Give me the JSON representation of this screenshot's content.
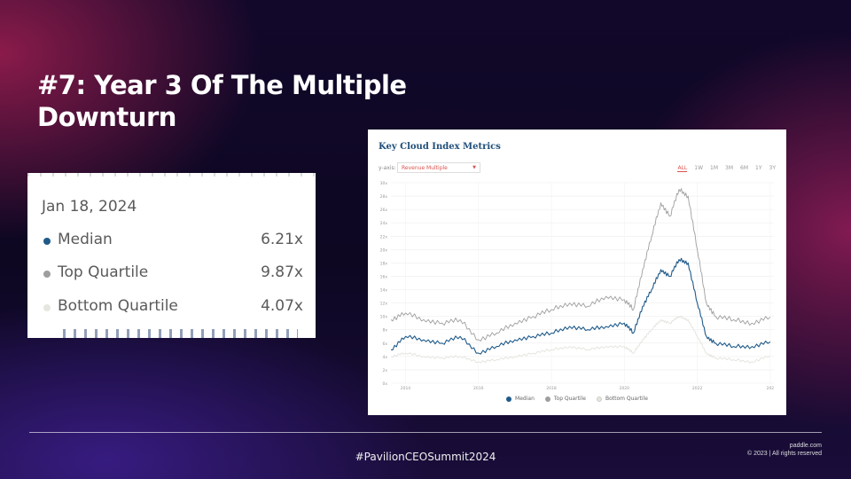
{
  "slide": {
    "title": "#7:  Year 3 Of The Multiple Downturn"
  },
  "tooltip": {
    "date": "Jan 18, 2024",
    "rows": [
      {
        "label": "Median",
        "value": "6.21x",
        "color": "#1f5a8a"
      },
      {
        "label": "Top Quartile",
        "value": "9.87x",
        "color": "#9e9e9e"
      },
      {
        "label": "Bottom Quartile",
        "value": "4.07x",
        "color": "#e6e6e0"
      }
    ]
  },
  "chart_panel": {
    "title": "Key Cloud Index Metrics",
    "yaxis_label": "y-axis:",
    "yaxis_selected": "Revenue Multiple",
    "ranges": [
      "ALL",
      "1W",
      "1M",
      "3M",
      "6M",
      "1Y",
      "3Y"
    ],
    "active_range": "ALL",
    "legend": [
      {
        "label": "Median",
        "color": "#1f5a8a"
      },
      {
        "label": "Top Quartile",
        "color": "#9e9e9e"
      },
      {
        "label": "Bottom Quartile",
        "color": "#e6e6e0"
      }
    ]
  },
  "chart_data": {
    "type": "line",
    "y_tick_labels": [
      "0x",
      "2x",
      "4x",
      "6x",
      "8x",
      "10x",
      "12x",
      "14x",
      "16x",
      "18x",
      "20x",
      "22x",
      "24x",
      "26x",
      "28x",
      "30x"
    ],
    "x_tick_labels": [
      "2014",
      "2016",
      "2018",
      "2020",
      "2022",
      "202"
    ],
    "ylim": [
      0,
      30
    ],
    "xlim": [
      2013.6,
      2024.1
    ],
    "grid": true,
    "legend_position": "bottom",
    "x": [
      2013.6,
      2014.0,
      2014.5,
      2015.0,
      2015.5,
      2016.0,
      2016.5,
      2017.0,
      2017.5,
      2018.0,
      2018.5,
      2019.0,
      2019.5,
      2020.0,
      2020.25,
      2020.5,
      2020.75,
      2021.0,
      2021.25,
      2021.5,
      2021.75,
      2022.0,
      2022.25,
      2022.5,
      2023.0,
      2023.5,
      2024.0
    ],
    "series": [
      {
        "name": "Top Quartile",
        "color": "#9e9e9e",
        "values": [
          9.5,
          10.5,
          9.5,
          9.0,
          9.5,
          6.5,
          7.5,
          9.0,
          10.0,
          11.0,
          12.0,
          11.5,
          13.0,
          12.5,
          11.0,
          17.0,
          22.0,
          27.0,
          25.0,
          29.0,
          28.0,
          20.0,
          12.0,
          10.0,
          9.5,
          9.0,
          9.9
        ]
      },
      {
        "name": "Median",
        "color": "#1f5a8a",
        "values": [
          5.0,
          7.0,
          6.5,
          6.0,
          7.0,
          4.5,
          5.5,
          6.5,
          7.0,
          7.5,
          8.5,
          8.0,
          8.5,
          9.0,
          7.5,
          11.5,
          14.0,
          17.0,
          16.0,
          18.5,
          18.0,
          12.0,
          7.0,
          6.0,
          5.5,
          5.5,
          6.2
        ]
      },
      {
        "name": "Bottom Quartile",
        "color": "#e3e3dc",
        "values": [
          4.0,
          4.5,
          4.0,
          3.8,
          4.0,
          3.2,
          3.5,
          4.0,
          4.5,
          5.0,
          5.5,
          5.0,
          5.5,
          5.5,
          4.5,
          6.5,
          8.0,
          9.5,
          9.0,
          10.0,
          9.5,
          7.0,
          4.5,
          3.8,
          3.5,
          3.2,
          4.1
        ]
      }
    ]
  },
  "footer": {
    "hashtag": "#PavilionCEOSummit2024",
    "site": "paddle.com",
    "copyright": "© 2023  |  All rights reserved"
  }
}
